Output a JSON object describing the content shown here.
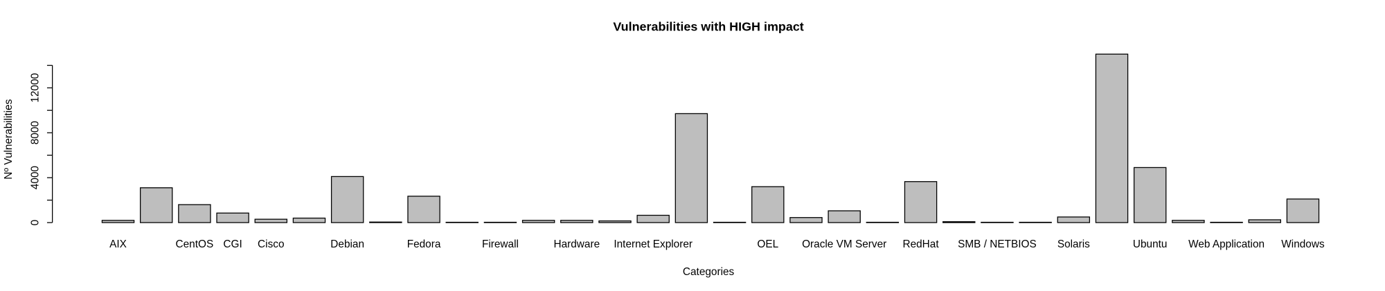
{
  "chart_data": {
    "type": "bar",
    "title": "Vulnerabilities with HIGH impact",
    "x_label": "Categories",
    "y_label": "Nº Vulnerabilities",
    "categories": [
      "AIX",
      null,
      "CentOS",
      "CGI",
      "Cisco",
      null,
      "Debian",
      null,
      "Fedora",
      null,
      "Firewall",
      null,
      "Hardware",
      null,
      "Internet Explorer",
      null,
      null,
      "OEL",
      null,
      "Oracle VM Server",
      null,
      "RedHat",
      null,
      "SMB / NETBIOS",
      null,
      "Solaris",
      null,
      "Ubuntu",
      null,
      "Web Application",
      null,
      "Windows"
    ],
    "values": [
      200,
      3100,
      1600,
      850,
      300,
      400,
      4100,
      50,
      2350,
      30,
      30,
      200,
      200,
      150,
      650,
      9700,
      30,
      3200,
      450,
      1050,
      30,
      3650,
      80,
      30,
      30,
      500,
      15000,
      4900,
      200,
      30,
      250,
      2100
    ],
    "color": "#bebebe",
    "ylim": [
      0,
      15000
    ],
    "yticks": [
      0,
      4000,
      8000,
      12000
    ],
    "minor_yticks": [
      2000,
      6000,
      10000,
      14000
    ]
  }
}
